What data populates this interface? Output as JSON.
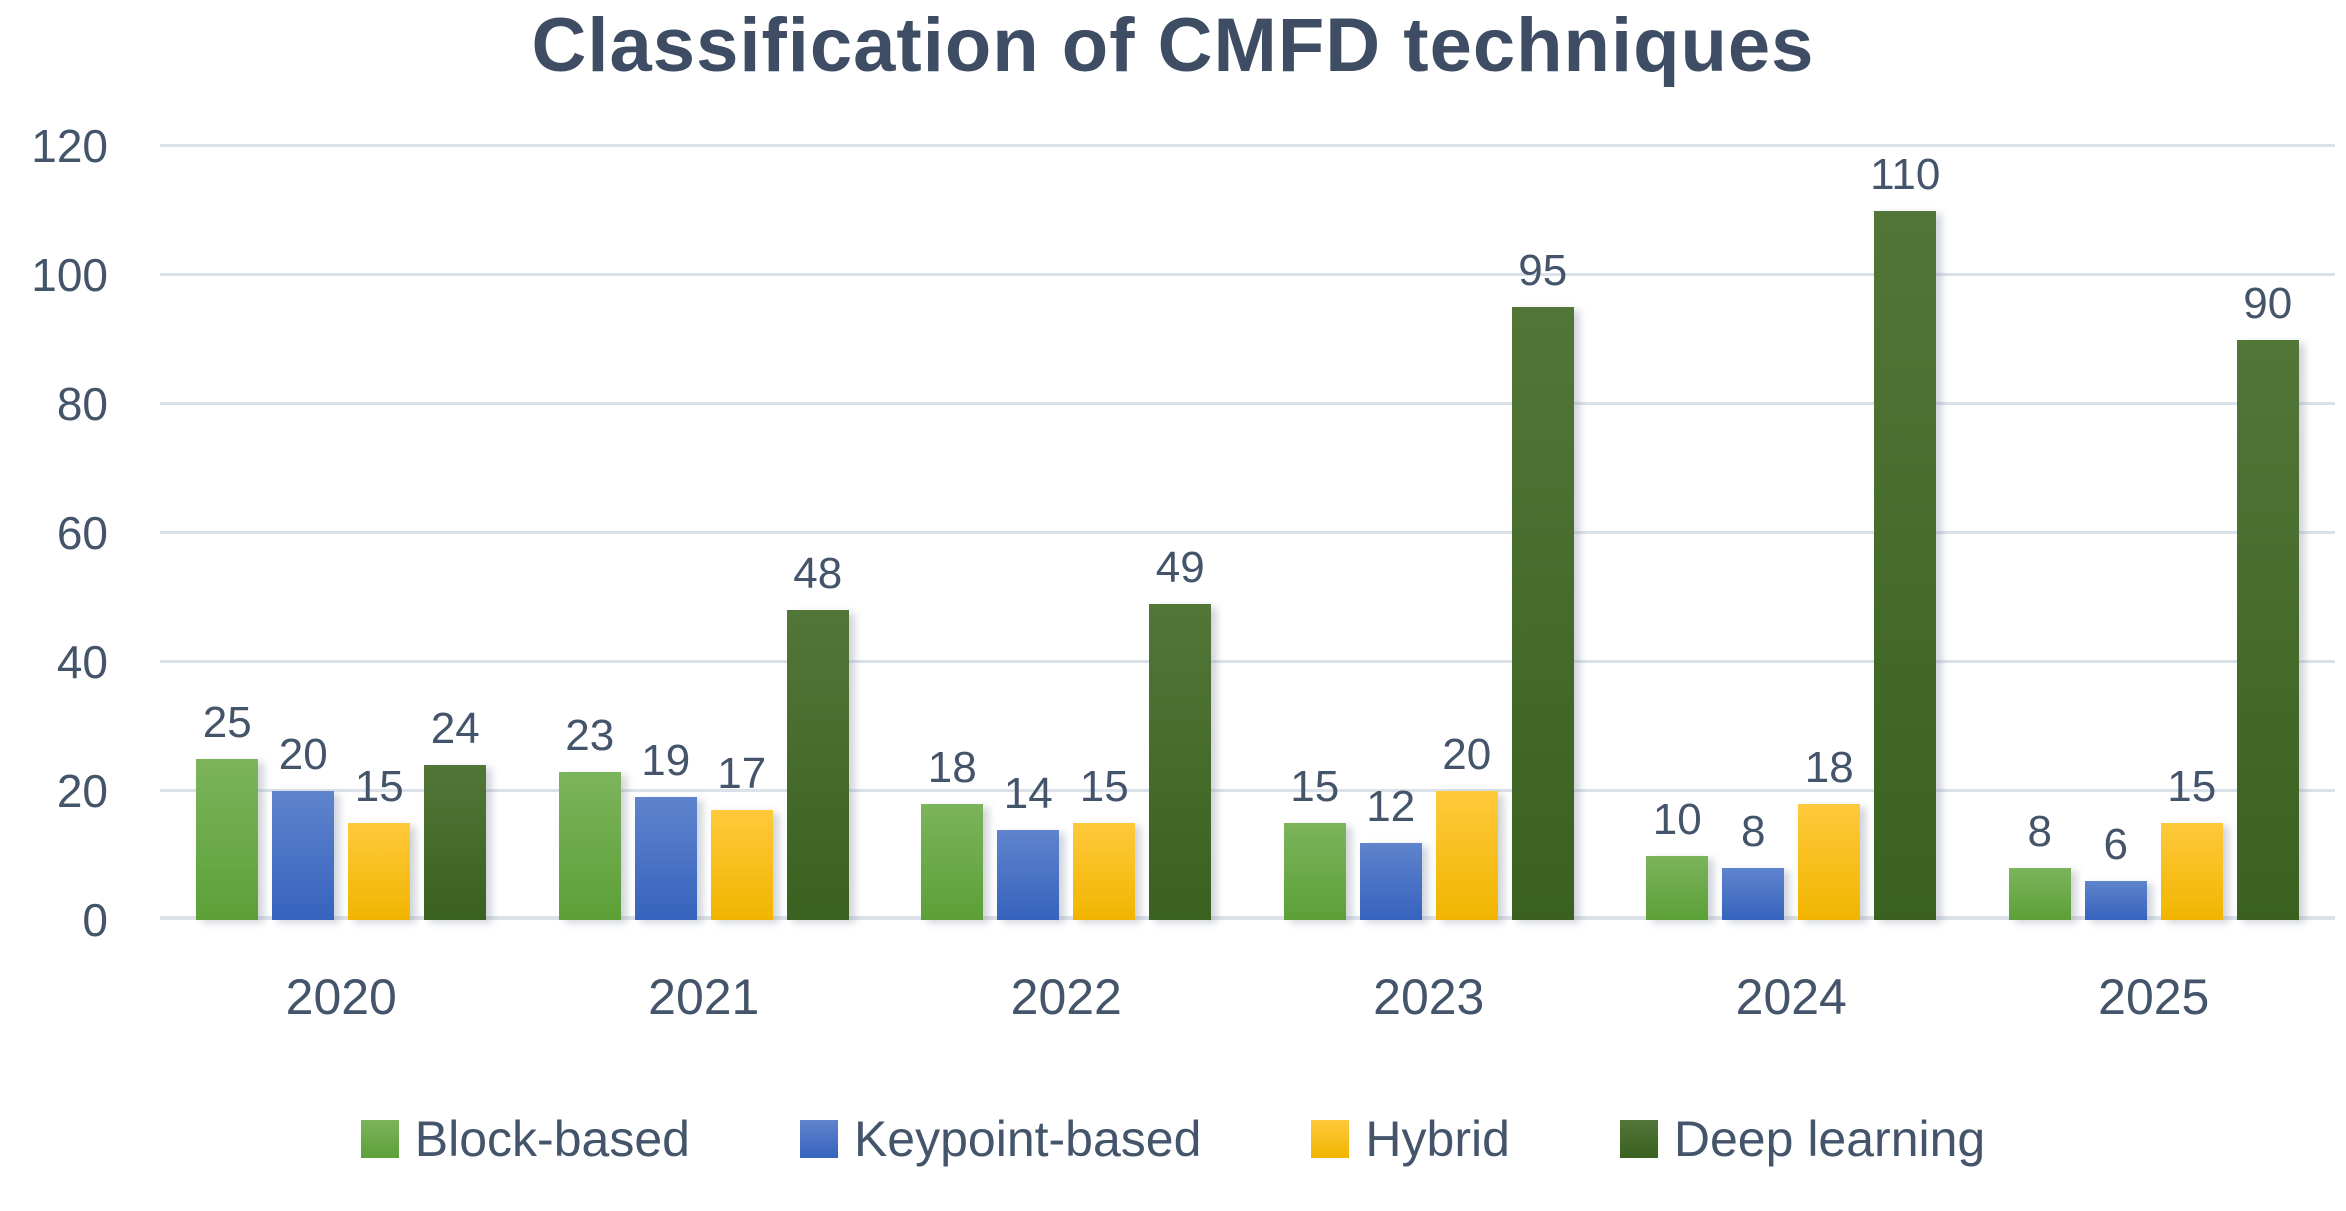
{
  "chart_data": {
    "type": "bar",
    "title": "Classification of CMFD techniques",
    "categories": [
      "2020",
      "2021",
      "2022",
      "2023",
      "2024",
      "2025"
    ],
    "series": [
      {
        "name": "Block-based",
        "color": "#70AD47",
        "gradient_top": "#7cb45c",
        "gradient_bottom": "#5ca037",
        "values": [
          25,
          23,
          18,
          15,
          10,
          8
        ]
      },
      {
        "name": "Keypoint-based",
        "color": "#4472C4",
        "gradient_top": "#5f84cd",
        "gradient_bottom": "#3663bd",
        "values": [
          20,
          19,
          14,
          12,
          8,
          6
        ]
      },
      {
        "name": "Hybrid",
        "color": "#FFC000",
        "gradient_top": "#ffc93b",
        "gradient_bottom": "#f1b500",
        "values": [
          15,
          17,
          15,
          20,
          18,
          15
        ]
      },
      {
        "name": "Deep learning",
        "color": "#538135",
        "gradient_top": "#527638",
        "gradient_bottom": "#3a611f",
        "values": [
          24,
          48,
          49,
          95,
          110,
          90
        ]
      }
    ],
    "xlabel": "",
    "ylabel": "",
    "ylim": [
      0,
      120
    ],
    "yticks": [
      0,
      20,
      40,
      60,
      80,
      100,
      120
    ],
    "grid": true,
    "legend_position": "bottom",
    "value_labels_shown": true,
    "text_color": "#44546a",
    "title_color": "#3e4d63",
    "gridline_color": "#dbe1e9"
  }
}
